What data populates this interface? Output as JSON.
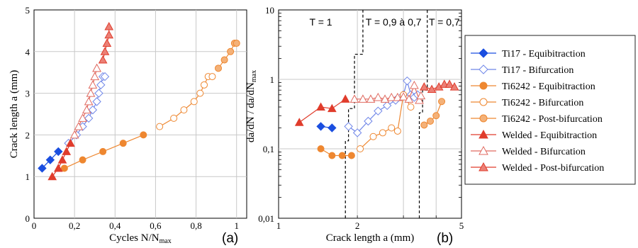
{
  "chart_data": [
    {
      "type": "scatter",
      "panel_label": "(a)",
      "xlabel": "Cycles N/N",
      "xlabel_sub": "max",
      "ylabel": "Crack length a (mm)",
      "xlim": [
        0,
        1.05
      ],
      "ylim": [
        0,
        5
      ],
      "grid": true,
      "x_ticks": [
        0,
        0.2,
        0.4,
        0.6,
        0.8,
        1
      ],
      "x_tick_labels": [
        "0",
        "0,2",
        "0,4",
        "0,6",
        "0,8",
        "1"
      ],
      "y_ticks": [
        0,
        1,
        2,
        3,
        4,
        5
      ],
      "y_tick_labels": [
        "0",
        "1",
        "2",
        "3",
        "4",
        "5"
      ],
      "series": [
        {
          "name": "Ti17 - Equibitraction",
          "color": "#1a4ee0",
          "marker": "diamond",
          "fill": "solid",
          "x": [
            0.04,
            0.08,
            0.12
          ],
          "y": [
            1.2,
            1.4,
            1.6
          ]
        },
        {
          "name": "Ti17 - Bifurcation",
          "color": "#6f86e8",
          "marker": "diamond",
          "fill": "open",
          "x": [
            0.17,
            0.21,
            0.24,
            0.27,
            0.29,
            0.31,
            0.32,
            0.33,
            0.34,
            0.35
          ],
          "y": [
            1.8,
            2.0,
            2.2,
            2.4,
            2.6,
            2.8,
            3.0,
            3.2,
            3.4,
            3.4
          ]
        },
        {
          "name": "Ti6242 - Equibitraction",
          "color": "#ee8730",
          "marker": "circle",
          "fill": "solid",
          "x": [
            0.15,
            0.24,
            0.34,
            0.44,
            0.54
          ],
          "y": [
            1.2,
            1.4,
            1.6,
            1.8,
            2.0
          ]
        },
        {
          "name": "Ti6242 - Bifurcation",
          "color": "#ee8730",
          "marker": "circle",
          "fill": "open",
          "x": [
            0.62,
            0.69,
            0.74,
            0.79,
            0.82,
            0.84,
            0.86,
            0.88
          ],
          "y": [
            2.2,
            2.4,
            2.6,
            2.8,
            3.0,
            3.2,
            3.4,
            3.4
          ]
        },
        {
          "name": "Ti6242 - Post-bifurcation",
          "color": "#ee8730",
          "marker": "circle",
          "fill": "tint",
          "x": [
            0.91,
            0.94,
            0.97,
            0.99,
            1.0
          ],
          "y": [
            3.6,
            3.8,
            4.0,
            4.2,
            4.2
          ]
        },
        {
          "name": "Welded - Equibitraction",
          "color": "#e03c2c",
          "marker": "triangle",
          "fill": "solid",
          "x": [
            0.09,
            0.12,
            0.14,
            0.16,
            0.18
          ],
          "y": [
            1.0,
            1.2,
            1.4,
            1.6,
            1.8
          ]
        },
        {
          "name": "Welded - Bifurcation",
          "color": "#e06a60",
          "marker": "triangle",
          "fill": "open",
          "x": [
            0.2,
            0.22,
            0.24,
            0.26,
            0.27,
            0.28,
            0.29,
            0.3,
            0.31,
            0.31
          ],
          "y": [
            2.0,
            2.2,
            2.4,
            2.6,
            2.8,
            3.0,
            3.2,
            3.4,
            3.6,
            3.6
          ]
        },
        {
          "name": "Welded - Post-bifurcation",
          "color": "#e03c2c",
          "marker": "triangle",
          "fill": "tint",
          "x": [
            0.34,
            0.35,
            0.36,
            0.37,
            0.37
          ],
          "y": [
            3.8,
            4.0,
            4.2,
            4.4,
            4.6
          ]
        }
      ]
    },
    {
      "type": "scatter",
      "panel_label": "(b)",
      "xlabel": "Crack length a (mm)",
      "ylabel": "da/dN / da/dN",
      "ylabel_sub": "max",
      "x_scale": "log",
      "y_scale": "log",
      "xlim": [
        1,
        5
      ],
      "ylim": [
        0.01,
        10
      ],
      "grid": true,
      "x_ticks": [
        1,
        2,
        5
      ],
      "x_tick_labels": [
        "1",
        "2",
        "5"
      ],
      "y_ticks": [
        0.01,
        0.1,
        1,
        10
      ],
      "y_tick_labels": [
        "0,01",
        "0,1",
        "1",
        "10"
      ],
      "annotations": [
        "T = 1",
        "T = 0,9 à 0,7",
        "T = 0,7"
      ],
      "series": [
        {
          "name": "Ti17 - Equibitraction",
          "color": "#1a4ee0",
          "marker": "diamond",
          "fill": "solid",
          "x": [
            1.45,
            1.6
          ],
          "y": [
            0.21,
            0.2
          ]
        },
        {
          "name": "Ti17 - Bifurcation",
          "color": "#6f86e8",
          "marker": "diamond",
          "fill": "open",
          "x": [
            1.85,
            2.0,
            2.2,
            2.4,
            2.6,
            2.8,
            3.0,
            3.1,
            3.2,
            3.3,
            3.4
          ],
          "y": [
            0.21,
            0.17,
            0.25,
            0.35,
            0.42,
            0.5,
            0.6,
            0.95,
            0.6,
            0.55,
            0.6
          ]
        },
        {
          "name": "Ti6242 - Equibitraction",
          "color": "#ee8730",
          "marker": "circle",
          "fill": "solid",
          "x": [
            1.45,
            1.6,
            1.75,
            1.9
          ],
          "y": [
            0.1,
            0.08,
            0.08,
            0.08
          ]
        },
        {
          "name": "Ti6242 - Bifurcation",
          "color": "#ee8730",
          "marker": "circle",
          "fill": "open",
          "x": [
            2.05,
            2.3,
            2.5,
            2.7,
            2.85,
            3.0,
            3.2
          ],
          "y": [
            0.1,
            0.15,
            0.17,
            0.2,
            0.18,
            0.6,
            0.4
          ]
        },
        {
          "name": "Ti6242 - Post-bifurcation",
          "color": "#ee8730",
          "marker": "circle",
          "fill": "tint",
          "x": [
            3.6,
            3.8,
            4.0,
            4.2
          ],
          "y": [
            0.22,
            0.25,
            0.3,
            0.48
          ]
        },
        {
          "name": "Welded - Equibitraction",
          "color": "#e03c2c",
          "marker": "triangle",
          "fill": "solid",
          "x": [
            1.2,
            1.45,
            1.6,
            1.8
          ],
          "y": [
            0.24,
            0.4,
            0.38,
            0.52
          ]
        },
        {
          "name": "Welded - Bifurcation",
          "color": "#e06a60",
          "marker": "triangle",
          "fill": "open",
          "x": [
            1.95,
            2.1,
            2.25,
            2.4,
            2.55,
            2.7,
            2.85,
            3.0,
            3.15,
            3.3,
            3.45,
            3.5
          ],
          "y": [
            0.52,
            0.52,
            0.52,
            0.55,
            0.52,
            0.55,
            0.55,
            0.56,
            0.52,
            0.82,
            0.5,
            0.58
          ]
        },
        {
          "name": "Welded - Post-bifurcation",
          "color": "#e03c2c",
          "marker": "triangle",
          "fill": "tint",
          "x": [
            3.6,
            3.85,
            4.1,
            4.3,
            4.5,
            4.7
          ],
          "y": [
            0.78,
            0.72,
            0.78,
            0.85,
            0.85,
            0.78
          ]
        }
      ]
    }
  ],
  "legend": {
    "entries": [
      "Ti17 - Equibitraction",
      "Ti17 - Bifurcation",
      "Ti6242 - Equibitraction",
      "Ti6242 - Bifurcation",
      "Ti6242 - Post-bifurcation",
      "Welded - Equibitraction",
      "Welded - Bifurcation",
      "Welded - Post-bifurcation"
    ]
  }
}
